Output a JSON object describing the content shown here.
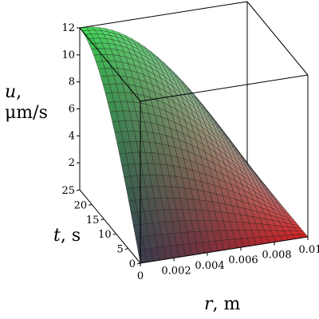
{
  "chart_data": {
    "type": "surface",
    "axes": {
      "u": {
        "symbol": "u",
        "unit": "μm/s",
        "ticks": [
          "2",
          "4",
          "6",
          "8",
          "10",
          "12"
        ],
        "range": [
          0,
          12
        ]
      },
      "t": {
        "symbol": "t",
        "unit": "s",
        "ticks": [
          "0",
          "5",
          "10",
          "15",
          "20",
          "25"
        ],
        "range": [
          0,
          25
        ]
      },
      "r": {
        "symbol": "r",
        "unit": "m",
        "ticks": [
          "0",
          "0.002",
          "0.004",
          "0.006",
          "0.008",
          "0.01"
        ],
        "range": [
          0,
          0.01
        ]
      }
    },
    "surface": {
      "peak_value": 12,
      "peak_at": {
        "r": 0,
        "t": 25
      },
      "value_at_r_max": 0,
      "value_at_t0": 0
    },
    "grid": true,
    "box": true,
    "colormap": [
      "#3ddc52",
      "#cfe6ea",
      "#3a3a4e",
      "#d81f1f"
    ]
  }
}
